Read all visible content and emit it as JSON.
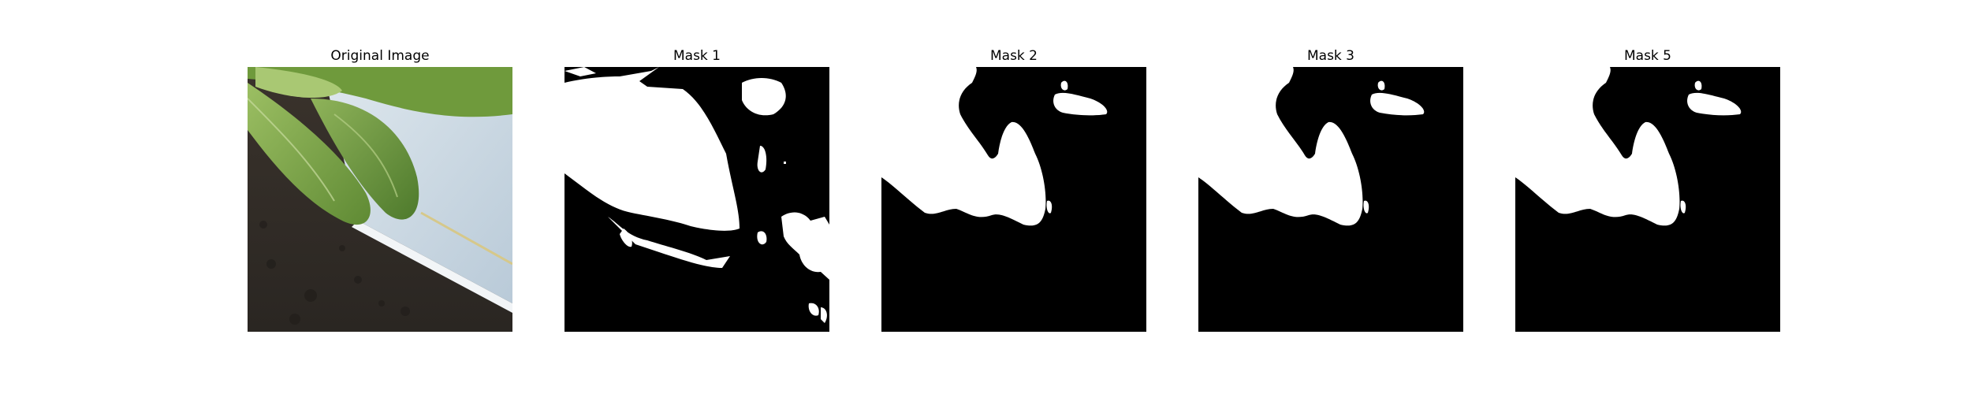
{
  "figure": {
    "panels": [
      {
        "title": "Original Image"
      },
      {
        "title": "Mask 1"
      },
      {
        "title": "Mask 2"
      },
      {
        "title": "Mask 3"
      },
      {
        "title": "Mask 5"
      }
    ]
  },
  "colors": {
    "background": "#ffffff",
    "mask_background": "#000000",
    "mask_foreground": "#ffffff",
    "leaf_light": "#8fb35a",
    "leaf_dark": "#5f8a34",
    "tray": "#c9d7e2",
    "soil": "#2a2622"
  }
}
